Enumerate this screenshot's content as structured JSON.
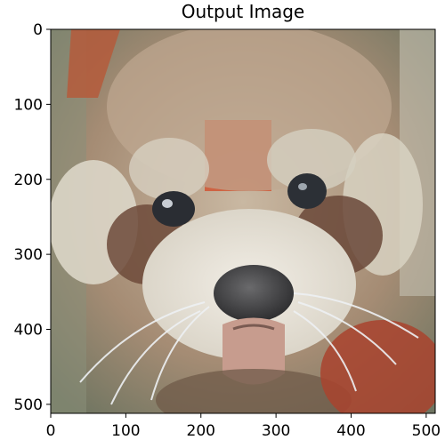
{
  "figure": {
    "title": "Output Image",
    "subject": "red-panda-face",
    "x_axis": {
      "range": [
        0,
        512
      ],
      "ticks": [
        0,
        100,
        200,
        300,
        400,
        500
      ]
    },
    "y_axis": {
      "range": [
        0,
        512
      ],
      "ticks": [
        0,
        100,
        200,
        300,
        400,
        500
      ],
      "inverted": true
    },
    "colors": {
      "fur_cream": "#e6dfd2",
      "fur_tan": "#b9a48f",
      "fur_brown": "#6d4a3a",
      "red_patch": "#c85a3c",
      "nose": "#3a3a3c",
      "tongue": "#c79c8e",
      "background_green": "#7f8a70"
    }
  }
}
